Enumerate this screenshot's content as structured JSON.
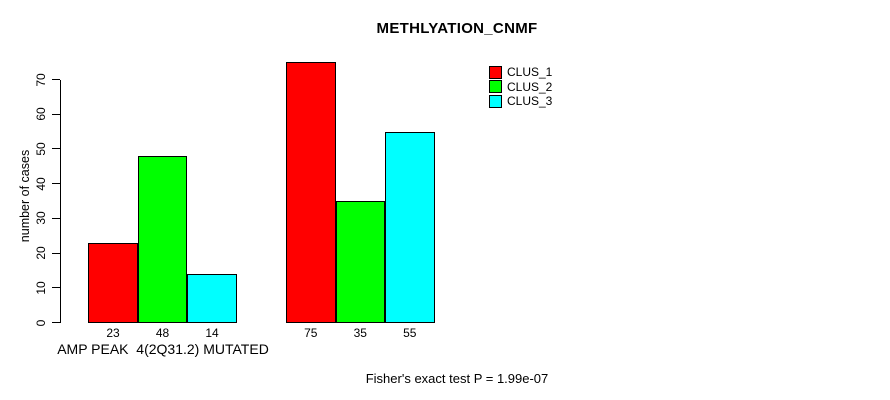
{
  "chart_data": {
    "type": "bar",
    "title": "METHLYATION_CNMF",
    "ylabel": "number of cases",
    "xlabel": "",
    "categories": [
      "AMP PEAK  4(2Q31.2) MUTATED",
      ""
    ],
    "series": [
      {
        "name": "CLUS_1",
        "color": "#ff0000",
        "values": [
          23,
          75
        ]
      },
      {
        "name": "CLUS_2",
        "color": "#00ff00",
        "values": [
          48,
          35
        ]
      },
      {
        "name": "CLUS_3",
        "color": "#00ffff",
        "values": [
          14,
          55
        ]
      }
    ],
    "yticks": [
      0,
      10,
      20,
      30,
      40,
      50,
      60,
      70
    ],
    "ylim": [
      0,
      75
    ],
    "grid": false,
    "value_labels_under_bars": true,
    "legend_position": "top-right",
    "legend_entries": [
      "CLUS_1",
      "CLUS_2",
      "CLUS_3"
    ],
    "bar_border_color": "#000000",
    "axis_color": "#000000",
    "annotation": "Fisher's exact test P = 1.99e-07"
  }
}
